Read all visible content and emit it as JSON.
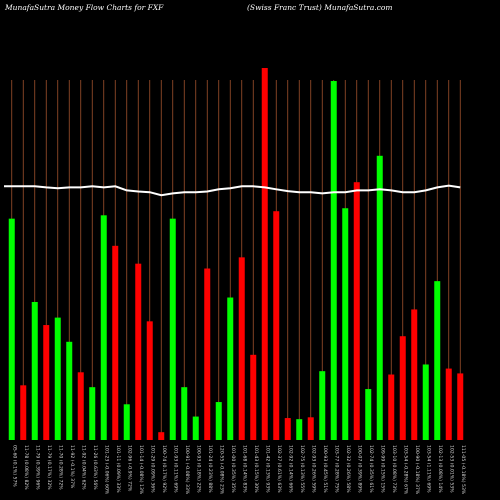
{
  "header": {
    "title_left": "MunafaSutra  Money Flow  Charts for FXF",
    "title_right": "(Swiss Franc Trust) MunafaSutra.com"
  },
  "colors": {
    "up": "#00ff00",
    "down": "#ff0000",
    "gridline": "#a0522d",
    "line": "#ffffff",
    "background": "#000000"
  },
  "chart_data": {
    "type": "bar",
    "grid": "vertical lines",
    "ylim": [
      0,
      100
    ],
    "categories": [
      "05-60 (0.1%) 57%",
      "11-78 (0.08%) 82%",
      "11-79 (0.39%) 96%",
      "11-79 (0.17%) 32%",
      "11-70 (0.28%) 72%",
      "11-92 (-0.1%) 37%",
      "11-92 (0.04%) 62%",
      "11-26 (0.63%) 56%",
      "101-23 (-0.06%) 60%",
      "101-11 (0.09%) 33%",
      "102-96 (-0.9%) 72%",
      "101-14 (-0.08%) 13%",
      "101-29 (0.09%) 36%",
      "100-74 (0.17%) 92%",
      "101-93 (0.11%) 69%",
      "100-91 (-0.08%) 33%",
      "100-93 (0.18%) 22%",
      "101-24 (0.23%) 88%",
      "120-55 (-0.08%) 23%",
      "101-00 (0.35%) 35%",
      "101-68 (0.14%) 83%",
      "101-43 (0.15%) 30%",
      "101-42 (0.13%) 93%",
      "102-37 (0.61%) 63%",
      "102-92 (0.14%) 66%",
      "102-75 (0.13%) 55%",
      "102-93 (0.26%) 59%",
      "100-93 (0.45%) 51%",
      "103-77 (0.28%) 75%",
      "102-32 (0.26%) 58%",
      "100-07 (0.39%) 89%",
      "102-74 (0.35%) 61%",
      "109-99 (0.15%) 15%",
      "103-10 (0.08%) 73%",
      "103-54 (-0.28%) 67%",
      "100-90 (-0.18%) 37%",
      "103-54 (1.11%) 69%",
      "102-13 (0.08%) 14%",
      "102-53 (0.01%) 53%",
      "111-05 (-0.18%) 53%"
    ],
    "series": [
      {
        "values": [
          59.5,
          14.7,
          37.1,
          30.9,
          32.9,
          26.4,
          18.2,
          14.2,
          60.4,
          52.2,
          9.6,
          47.4,
          31.9,
          2.1,
          59.5,
          14.2,
          6.3,
          46.1,
          10.2,
          38.3,
          49.1,
          22.9,
          100,
          61.5,
          5.9,
          5.6,
          6.1,
          18.5,
          96.5,
          62.3,
          69.3,
          13.7,
          76.4,
          17.6,
          27.9,
          35.1,
          20.3,
          42.7,
          19.2,
          17.9
        ],
        "colors": [
          "up",
          "down",
          "up",
          "down",
          "up",
          "up",
          "down",
          "up",
          "up",
          "down",
          "up",
          "down",
          "down",
          "down",
          "up",
          "up",
          "up",
          "down",
          "up",
          "up",
          "down",
          "down",
          "down",
          "down",
          "down",
          "up",
          "down",
          "up",
          "up",
          "up",
          "down",
          "up",
          "up",
          "down",
          "down",
          "down",
          "up",
          "up",
          "down",
          "down"
        ]
      }
    ],
    "line": [
      68.2,
      68.2,
      68.2,
      67.9,
      67.7,
      67.9,
      67.9,
      68.2,
      67.9,
      68.2,
      67.1,
      66.8,
      66.6,
      65.8,
      66.3,
      66.6,
      66.6,
      66.8,
      67.4,
      67.7,
      68.2,
      68.2,
      67.9,
      67.4,
      66.9,
      66.6,
      66.6,
      66.3,
      66.6,
      66.6,
      67.1,
      67.1,
      67.4,
      67.1,
      66.6,
      66.6,
      67.1,
      67.9,
      68.4,
      67.9
    ]
  }
}
